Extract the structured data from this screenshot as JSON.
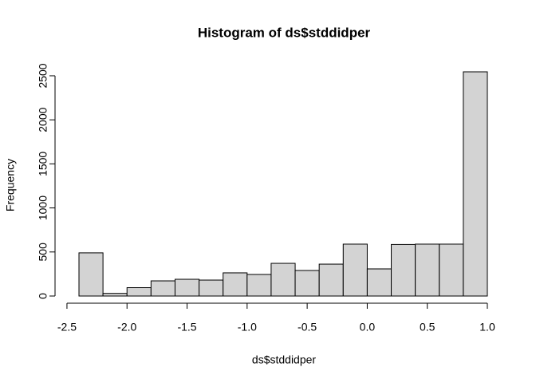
{
  "chart_data": {
    "type": "histogram",
    "title": "Histogram of ds$stddidper",
    "xlabel": "ds$stddidper",
    "ylabel": "Frequency",
    "bins": [
      -2.4,
      -2.2,
      -2.0,
      -1.8,
      -1.6,
      -1.4,
      -1.2,
      -1.0,
      -0.8,
      -0.6,
      -0.4,
      -0.2,
      0.0,
      0.2,
      0.4,
      0.6,
      0.8,
      1.0
    ],
    "values": [
      490,
      30,
      95,
      172,
      190,
      181,
      263,
      245,
      371,
      290,
      362,
      589,
      308,
      585,
      589,
      589,
      2545
    ],
    "color": "#d3d3d3",
    "xlim": [
      -2.4,
      1.0
    ],
    "xticks": [
      {
        "value": -2.5,
        "label": "-2.5"
      },
      {
        "value": -2.0,
        "label": "-2.0"
      },
      {
        "value": -1.5,
        "label": "-1.5"
      },
      {
        "value": -1.0,
        "label": "-1.0"
      },
      {
        "value": -0.5,
        "label": "-0.5"
      },
      {
        "value": 0.0,
        "label": "0.0"
      },
      {
        "value": 0.5,
        "label": "0.5"
      },
      {
        "value": 1.0,
        "label": "1.0"
      }
    ],
    "ylim": [
      0,
      2545
    ],
    "yticks": [
      0,
      500,
      1000,
      1500,
      2000,
      2500
    ]
  }
}
